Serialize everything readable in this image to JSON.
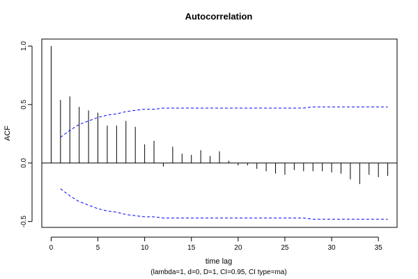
{
  "chart_data": {
    "type": "bar",
    "title": "Autocorrelation",
    "xlabel": "time lag",
    "ylabel": "ACF",
    "subtitle": "(lambda=1, d=0, D=1, CI=0.95, CI type=ma)",
    "xlim": [
      -1,
      37
    ],
    "ylim": [
      -0.55,
      1.06
    ],
    "x_ticks": [
      0,
      5,
      10,
      15,
      20,
      25,
      30,
      35
    ],
    "y_ticks": [
      -0.5,
      0.0,
      0.5,
      1.0
    ],
    "y_tick_labels": [
      "-0.5",
      "0.0",
      "0.5",
      "1.0"
    ],
    "grid": false,
    "lags": [
      0,
      1,
      2,
      3,
      4,
      5,
      6,
      7,
      8,
      9,
      10,
      11,
      12,
      13,
      14,
      15,
      16,
      17,
      18,
      19,
      20,
      21,
      22,
      23,
      24,
      25,
      26,
      27,
      28,
      29,
      30,
      31,
      32,
      33,
      34,
      35,
      36
    ],
    "acf": [
      1.0,
      0.54,
      0.57,
      0.48,
      0.45,
      0.43,
      0.32,
      0.32,
      0.36,
      0.31,
      0.16,
      0.19,
      -0.03,
      0.14,
      0.08,
      0.07,
      0.11,
      0.06,
      0.1,
      0.02,
      -0.02,
      -0.02,
      -0.05,
      -0.07,
      -0.09,
      -0.1,
      -0.06,
      -0.07,
      -0.07,
      -0.07,
      -0.08,
      -0.09,
      -0.14,
      -0.18,
      -0.1,
      -0.12,
      -0.11
    ],
    "ci_upper": {
      "x": [
        1,
        2,
        3,
        4,
        5,
        6,
        7,
        8,
        9,
        10,
        11,
        12,
        13,
        14,
        15,
        16,
        17,
        18,
        19,
        20,
        21,
        22,
        23,
        24,
        25,
        26,
        27,
        28,
        29,
        30,
        31,
        32,
        33,
        34,
        35,
        36
      ],
      "y": [
        0.22,
        0.28,
        0.33,
        0.36,
        0.39,
        0.41,
        0.42,
        0.44,
        0.45,
        0.46,
        0.46,
        0.47,
        0.47,
        0.47,
        0.47,
        0.47,
        0.47,
        0.47,
        0.47,
        0.47,
        0.47,
        0.47,
        0.47,
        0.47,
        0.47,
        0.47,
        0.47,
        0.48,
        0.48,
        0.48,
        0.48,
        0.48,
        0.48,
        0.48,
        0.48,
        0.48
      ]
    },
    "ci_lower": {
      "x": [
        1,
        2,
        3,
        4,
        5,
        6,
        7,
        8,
        9,
        10,
        11,
        12,
        13,
        14,
        15,
        16,
        17,
        18,
        19,
        20,
        21,
        22,
        23,
        24,
        25,
        26,
        27,
        28,
        29,
        30,
        31,
        32,
        33,
        34,
        35,
        36
      ],
      "y": [
        -0.22,
        -0.28,
        -0.33,
        -0.36,
        -0.39,
        -0.41,
        -0.42,
        -0.44,
        -0.45,
        -0.46,
        -0.46,
        -0.47,
        -0.47,
        -0.47,
        -0.47,
        -0.47,
        -0.47,
        -0.47,
        -0.47,
        -0.47,
        -0.47,
        -0.47,
        -0.47,
        -0.47,
        -0.47,
        -0.47,
        -0.47,
        -0.48,
        -0.48,
        -0.48,
        -0.48,
        -0.48,
        -0.48,
        -0.48,
        -0.48,
        -0.48
      ]
    },
    "colors": {
      "bars": "#000000",
      "ci": "#0000ff",
      "axis": "#000000"
    }
  }
}
